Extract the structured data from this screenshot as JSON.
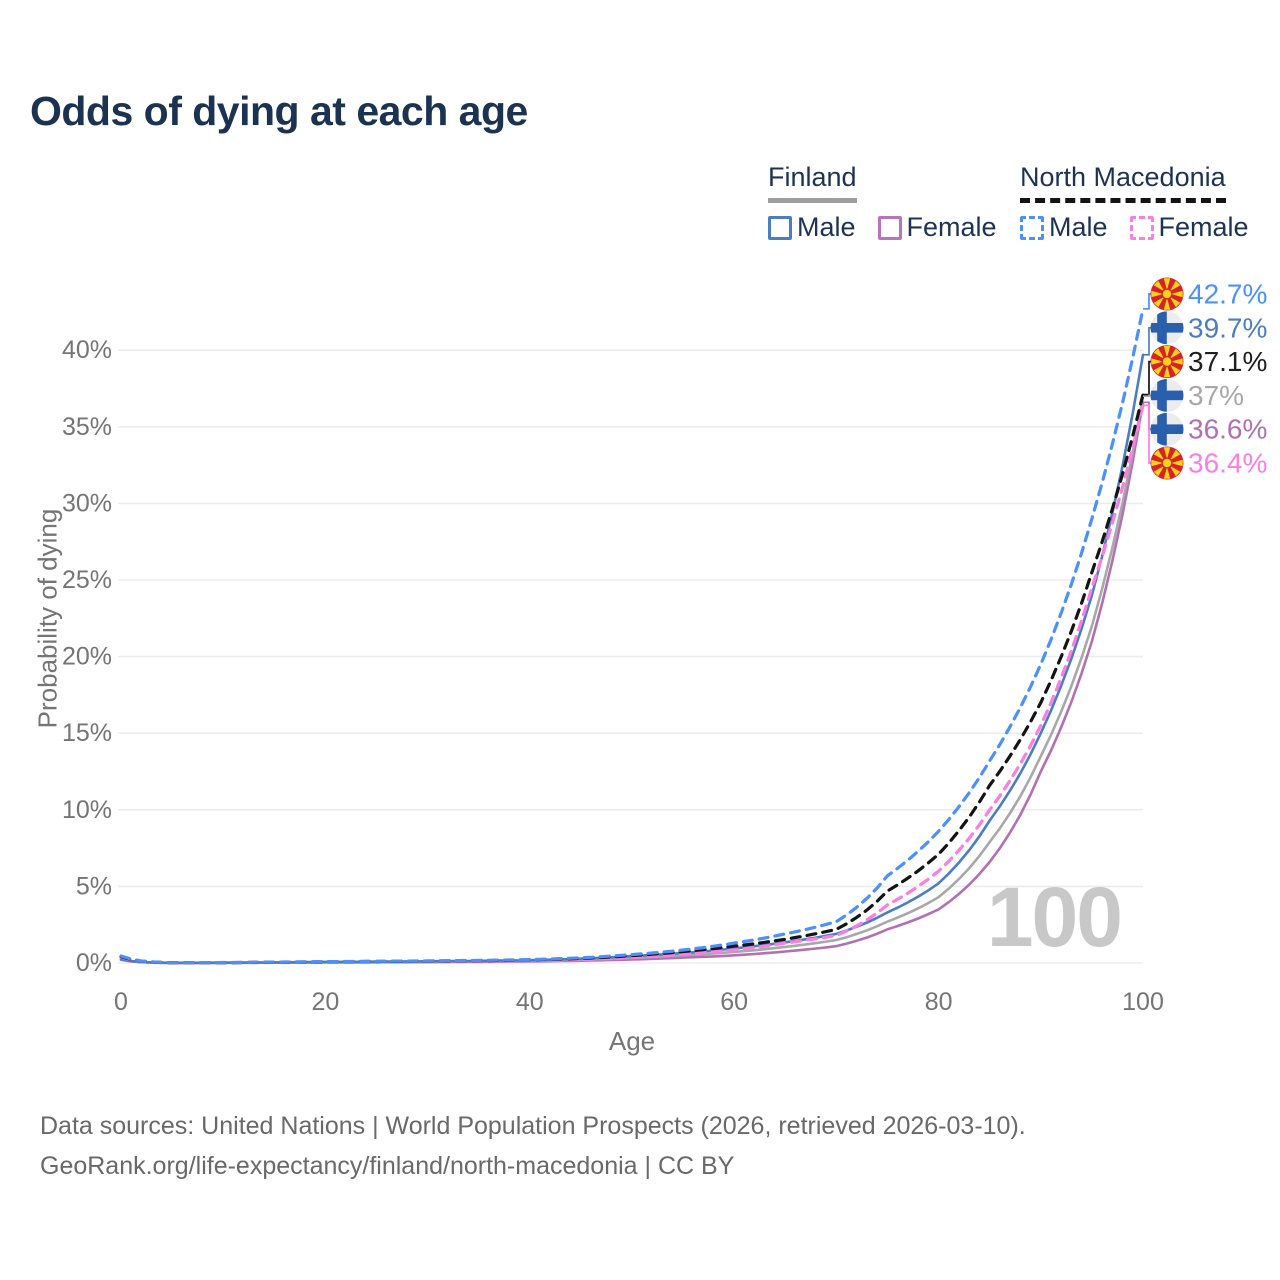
{
  "title": "Odds of dying at each age",
  "legend": {
    "groups": [
      {
        "id": "finland",
        "label": "Finland",
        "line_style": "solid",
        "underline_color": "#9e9e9e",
        "items": [
          {
            "id": "finland-male",
            "label": "Male",
            "color": "#4b7ec1",
            "dashed": false
          },
          {
            "id": "finland-female",
            "label": "Female",
            "color": "#b873ba",
            "dashed": false
          }
        ]
      },
      {
        "id": "north-macedonia",
        "label": "North Macedonia",
        "line_style": "dashed",
        "underline_color": "#141414",
        "items": [
          {
            "id": "north-macedonia-male",
            "label": "Male",
            "color": "#4b90fb",
            "dashed": true
          },
          {
            "id": "north-macedonia-female",
            "label": "Female",
            "color": "#fc7ee3",
            "dashed": true
          }
        ]
      }
    ]
  },
  "chart_data": {
    "type": "line",
    "title": "Odds of dying at each age",
    "xlabel": "Age",
    "ylabel": "Probability of dying",
    "xlim": [
      0,
      100
    ],
    "ylim": [
      0,
      44
    ],
    "x_ticks": [
      0,
      20,
      40,
      60,
      80,
      100
    ],
    "y_ticks": [
      {
        "value": 0,
        "label": "0%"
      },
      {
        "value": 5,
        "label": "5%"
      },
      {
        "value": 10,
        "label": "10%"
      },
      {
        "value": 15,
        "label": "15%"
      },
      {
        "value": 20,
        "label": "20%"
      },
      {
        "value": 25,
        "label": "25%"
      },
      {
        "value": 30,
        "label": "30%"
      },
      {
        "value": 35,
        "label": "35%"
      },
      {
        "value": 40,
        "label": "40%"
      }
    ],
    "grid": "horizontal",
    "legend_position": "top-right",
    "watermark": "100",
    "x": [
      0,
      5,
      10,
      15,
      20,
      25,
      30,
      35,
      40,
      45,
      50,
      55,
      60,
      65,
      70,
      75,
      80,
      85,
      90,
      95,
      100
    ],
    "series": [
      {
        "id": "north-macedonia-male",
        "name": "North Macedonia Male",
        "flag": "north-macedonia",
        "color": "#4b90fb",
        "dashed": true,
        "end_label": "42.7%",
        "end_value": 42.7,
        "values": [
          0.46,
          0.02,
          0.03,
          0.06,
          0.09,
          0.11,
          0.14,
          0.17,
          0.22,
          0.34,
          0.55,
          0.85,
          1.3,
          1.9,
          2.7,
          5.7,
          8.6,
          13.2,
          19.5,
          29.0,
          42.7
        ]
      },
      {
        "id": "finland-male",
        "name": "Finland Male",
        "flag": "finland",
        "color": "#4b7ec1",
        "dashed": false,
        "end_label": "39.7%",
        "end_value": 39.7,
        "values": [
          0.25,
          0.01,
          0.02,
          0.04,
          0.07,
          0.09,
          0.11,
          0.14,
          0.18,
          0.28,
          0.45,
          0.65,
          0.95,
          1.35,
          1.9,
          3.3,
          5.2,
          9.3,
          15.0,
          24.0,
          39.7
        ]
      },
      {
        "id": "north-macedonia-total",
        "name": "North Macedonia",
        "flag": "north-macedonia",
        "color": "#141414",
        "dashed": true,
        "end_label": "37.1%",
        "end_value": 37.1,
        "values": [
          0.42,
          0.018,
          0.025,
          0.05,
          0.08,
          0.1,
          0.12,
          0.15,
          0.2,
          0.3,
          0.48,
          0.75,
          1.1,
          1.55,
          2.2,
          4.7,
          7.1,
          11.6,
          17.0,
          25.5,
          37.1
        ]
      },
      {
        "id": "finland-total",
        "name": "Finland",
        "flag": "finland",
        "color": "#a8a8a8",
        "dashed": false,
        "end_label": "37%",
        "end_value": 37.0,
        "values": [
          0.22,
          0.009,
          0.015,
          0.03,
          0.05,
          0.065,
          0.085,
          0.11,
          0.14,
          0.21,
          0.34,
          0.5,
          0.72,
          1.05,
          1.5,
          2.7,
          4.3,
          7.9,
          13.5,
          22.0,
          37.0
        ]
      },
      {
        "id": "finland-female",
        "name": "Finland Female",
        "flag": "finland",
        "color": "#b170b3",
        "dashed": false,
        "end_label": "36.6%",
        "end_value": 36.6,
        "values": [
          0.2,
          0.008,
          0.01,
          0.02,
          0.03,
          0.04,
          0.055,
          0.075,
          0.1,
          0.15,
          0.23,
          0.35,
          0.5,
          0.75,
          1.1,
          2.2,
          3.5,
          6.6,
          12.5,
          21.0,
          36.6
        ]
      },
      {
        "id": "north-macedonia-female",
        "name": "North Macedonia Female",
        "flag": "north-macedonia",
        "color": "#fc7ee3",
        "dashed": true,
        "end_label": "36.4%",
        "end_value": 36.4,
        "values": [
          0.38,
          0.015,
          0.02,
          0.04,
          0.055,
          0.07,
          0.09,
          0.11,
          0.15,
          0.22,
          0.36,
          0.58,
          0.85,
          1.3,
          1.8,
          3.8,
          6.0,
          10.0,
          15.5,
          24.5,
          36.4
        ]
      }
    ]
  },
  "footer": {
    "line1": "Data sources: United Nations | World Population Prospects (2026, retrieved 2026-03-10).",
    "line2": "GeoRank.org/life-expectancy/finland/north-macedonia | CC BY"
  }
}
